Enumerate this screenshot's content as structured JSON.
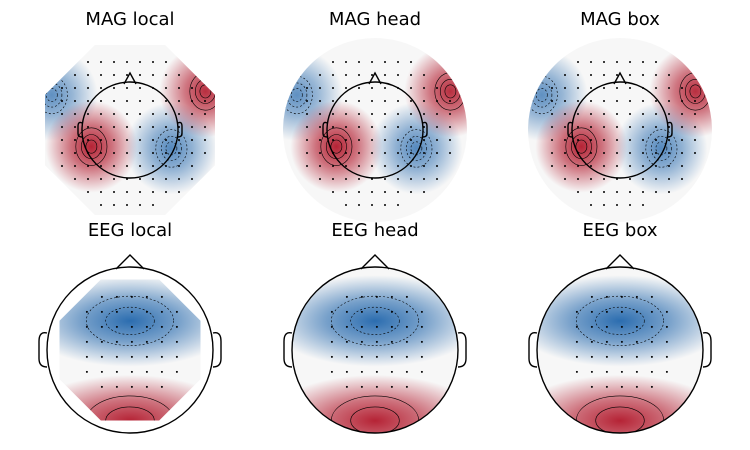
{
  "chart_data": [
    {
      "type": "heatmap",
      "title": "MAG local",
      "sensor_type": "MAG",
      "extrapolation": "local",
      "colormap": "RdBu_r",
      "sources": [
        {
          "kind": "negative",
          "u": -0.85,
          "v": 0.38,
          "strength": 0.75
        },
        {
          "kind": "positive",
          "u": -0.42,
          "v": -0.18,
          "strength": 1.0
        },
        {
          "kind": "negative",
          "u": 0.45,
          "v": -0.2,
          "strength": 0.8
        },
        {
          "kind": "positive",
          "u": 0.82,
          "v": 0.42,
          "strength": 0.95
        }
      ]
    },
    {
      "type": "heatmap",
      "title": "MAG head",
      "sensor_type": "MAG",
      "extrapolation": "head",
      "colormap": "RdBu_r",
      "sources": [
        {
          "kind": "negative",
          "u": -0.85,
          "v": 0.38,
          "strength": 0.75
        },
        {
          "kind": "positive",
          "u": -0.42,
          "v": -0.18,
          "strength": 1.0
        },
        {
          "kind": "negative",
          "u": 0.45,
          "v": -0.2,
          "strength": 0.8
        },
        {
          "kind": "positive",
          "u": 0.82,
          "v": 0.42,
          "strength": 0.95
        }
      ]
    },
    {
      "type": "heatmap",
      "title": "MAG box",
      "sensor_type": "MAG",
      "extrapolation": "box",
      "colormap": "RdBu_r",
      "sources": [
        {
          "kind": "negative",
          "u": -0.85,
          "v": 0.38,
          "strength": 0.75
        },
        {
          "kind": "positive",
          "u": -0.42,
          "v": -0.18,
          "strength": 1.0
        },
        {
          "kind": "negative",
          "u": 0.45,
          "v": -0.2,
          "strength": 0.8
        },
        {
          "kind": "positive",
          "u": 0.82,
          "v": 0.42,
          "strength": 0.95
        }
      ]
    },
    {
      "type": "heatmap",
      "title": "EEG local",
      "sensor_type": "EEG",
      "extrapolation": "local",
      "colormap": "RdBu_r",
      "sources": [
        {
          "kind": "negative",
          "u": 0.0,
          "v": 0.35,
          "strength": 1.0
        },
        {
          "kind": "positive",
          "u": 0.0,
          "v": -0.85,
          "strength": 1.0
        }
      ]
    },
    {
      "type": "heatmap",
      "title": "EEG head",
      "sensor_type": "EEG",
      "extrapolation": "head",
      "colormap": "RdBu_r",
      "sources": [
        {
          "kind": "negative",
          "u": 0.0,
          "v": 0.35,
          "strength": 1.0
        },
        {
          "kind": "positive",
          "u": 0.0,
          "v": -0.85,
          "strength": 1.0
        }
      ]
    },
    {
      "type": "heatmap",
      "title": "EEG box",
      "sensor_type": "EEG",
      "extrapolation": "box",
      "colormap": "RdBu_r",
      "sources": [
        {
          "kind": "negative",
          "u": 0.0,
          "v": 0.35,
          "strength": 1.0
        },
        {
          "kind": "positive",
          "u": 0.0,
          "v": -0.85,
          "strength": 1.0
        }
      ]
    }
  ],
  "colors": {
    "positive": "#b2182b",
    "negative": "#2166ac",
    "neutral": "#f7f7f7"
  }
}
